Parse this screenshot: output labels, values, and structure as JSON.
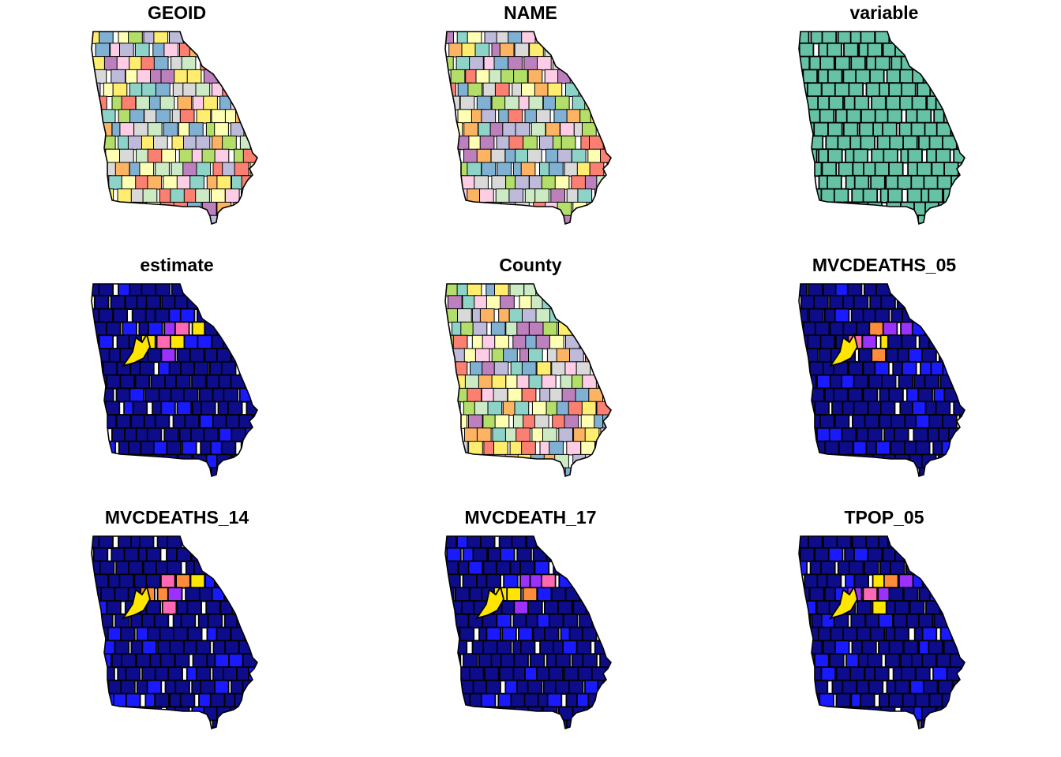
{
  "figure": {
    "panels": [
      {
        "title": "GEOID",
        "palette": "qualitative"
      },
      {
        "title": "NAME",
        "palette": "qualitative"
      },
      {
        "title": "variable",
        "palette": "single",
        "fill": "#66c2a5"
      },
      {
        "title": "estimate",
        "palette": "sequential"
      },
      {
        "title": "County",
        "palette": "qualitative"
      },
      {
        "title": "MVCDEATHS_05",
        "palette": "sequential"
      },
      {
        "title": "MVCDEATHS_14",
        "palette": "sequential"
      },
      {
        "title": "MVCDEATH_17",
        "palette": "sequential"
      },
      {
        "title": "TPOP_05",
        "palette": "sequential"
      }
    ],
    "colors": {
      "qualitative": [
        "#8dd3c7",
        "#ffffb3",
        "#bebada",
        "#fb8072",
        "#80b1d3",
        "#fdb462",
        "#b3de69",
        "#fccde5",
        "#d9d9d9",
        "#bc80bd",
        "#ccebc5",
        "#ffed6f"
      ],
      "sequential_low": "#0d0d8c",
      "sequential_mid": "#1a1aff",
      "sequential_high": [
        "#9b30ff",
        "#ff69b4",
        "#ff8c3a",
        "#ffe600"
      ],
      "border": "#000000"
    }
  }
}
